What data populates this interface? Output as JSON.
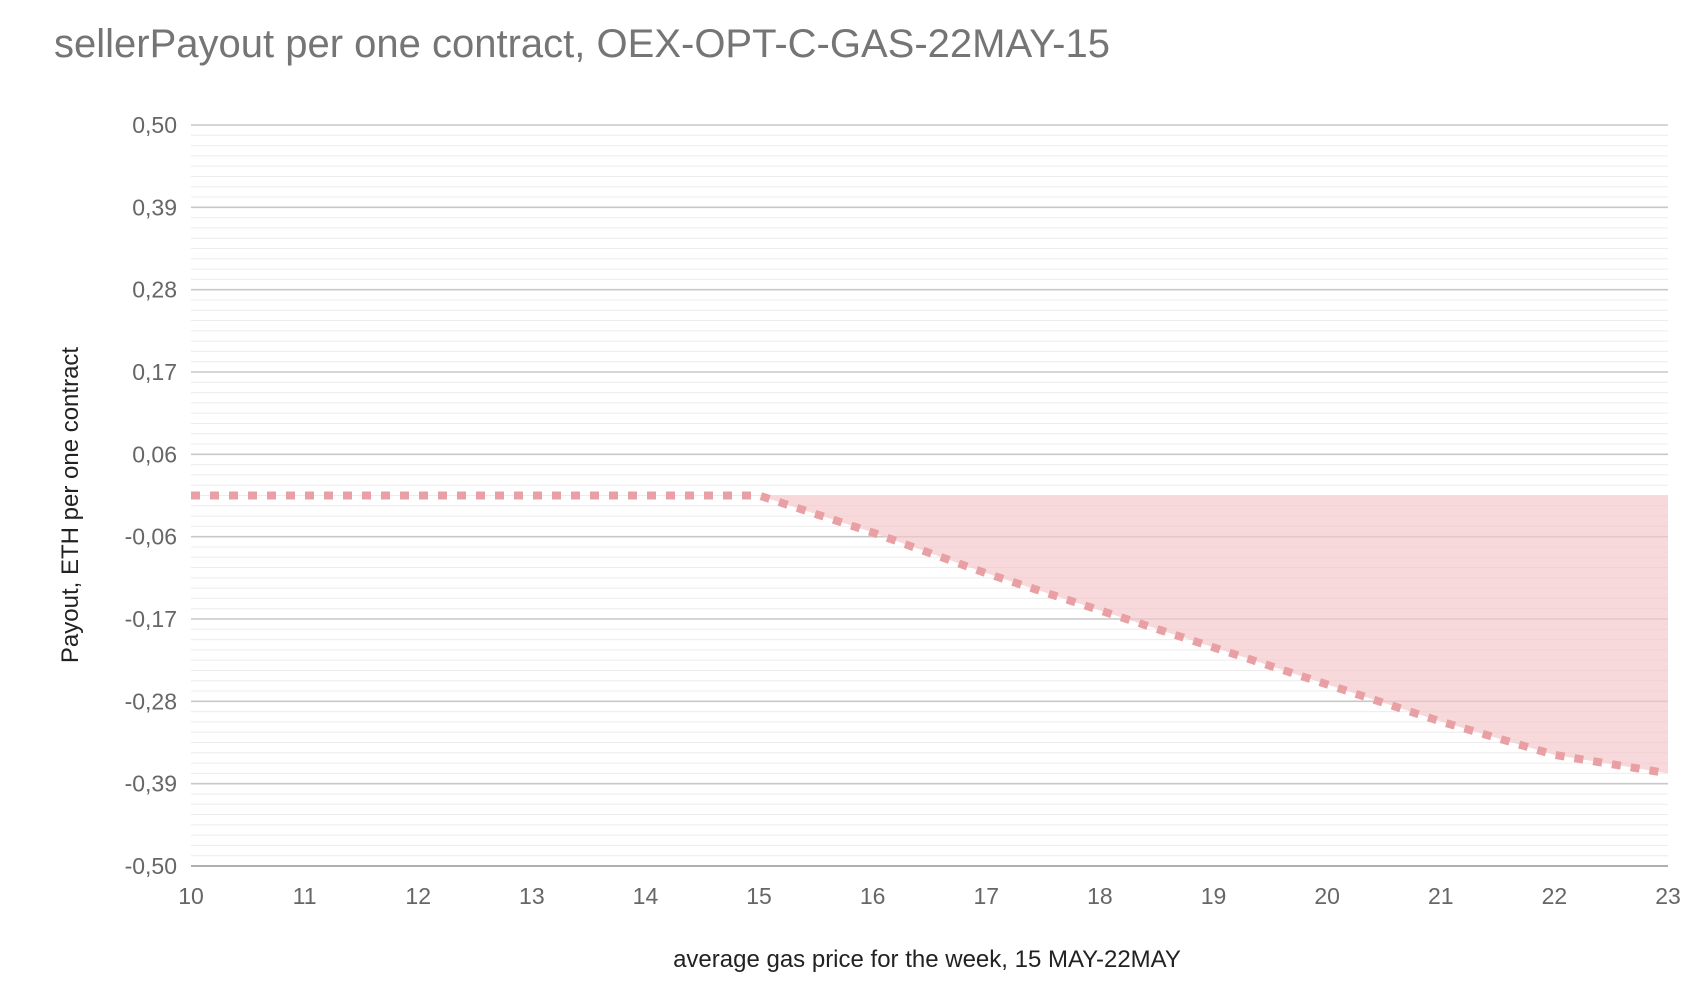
{
  "chart_data": {
    "type": "area",
    "title": "sellerPayout per one contract, OEX-OPT-C-GAS-22MAY-15",
    "xlabel": "average gas price for the week, 15 MAY-22MAY",
    "ylabel": "Payout, ETH per one contract",
    "xlim": [
      10,
      23
    ],
    "ylim": [
      -0.5,
      0.5
    ],
    "x_ticks": [
      "10",
      "11",
      "12",
      "13",
      "14",
      "15",
      "16",
      "17",
      "18",
      "19",
      "20",
      "21",
      "22",
      "23"
    ],
    "y_ticks": [
      {
        "value": 0.5,
        "label": "0,50"
      },
      {
        "value": 0.39,
        "label": "0,39"
      },
      {
        "value": 0.28,
        "label": "0,28"
      },
      {
        "value": 0.17,
        "label": "0,17"
      },
      {
        "value": 0.06,
        "label": "0,06"
      },
      {
        "value": -0.06,
        "label": "-0,06"
      },
      {
        "value": -0.17,
        "label": "-0,17"
      },
      {
        "value": -0.28,
        "label": "-0,28"
      },
      {
        "value": -0.39,
        "label": "-0,39"
      },
      {
        "value": -0.5,
        "label": "-0,50"
      }
    ],
    "grid": true,
    "legend": "none",
    "series": [
      {
        "x": [
          10,
          11,
          12,
          13,
          14,
          15,
          16,
          17,
          18,
          19,
          20,
          21,
          22,
          23
        ],
        "y": [
          0.0,
          0.0,
          0.0,
          0.0,
          0.0,
          0.0,
          -0.05,
          -0.105,
          -0.155,
          -0.205,
          -0.255,
          -0.305,
          -0.35,
          -0.375
        ],
        "line_color": "#e8a0a4",
        "line_style": "dotted",
        "fill_color": "#f4c5c8",
        "fill_to": 0.0
      }
    ]
  }
}
